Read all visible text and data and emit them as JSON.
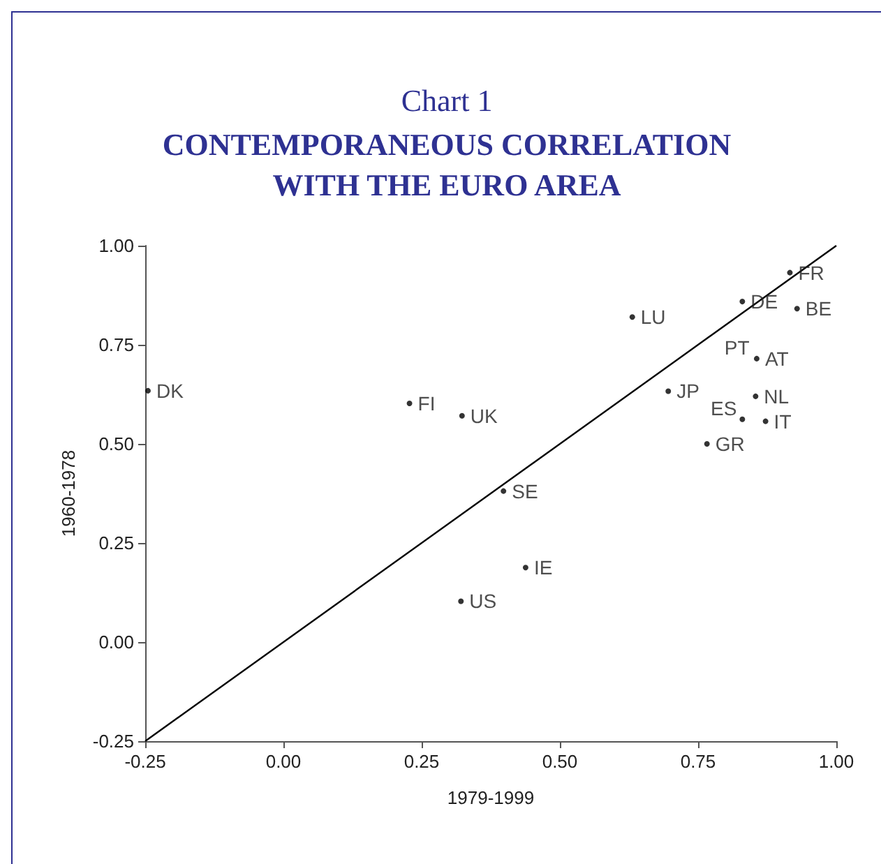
{
  "chart_data": {
    "type": "scatter",
    "title": "Chart 1",
    "subtitle": "CONTEMPORANEOUS CORRELATION\nWITH THE EURO AREA",
    "xlabel": "1979-1999",
    "ylabel": "1960-1978",
    "x": [
      -0.245,
      0.228,
      0.323,
      0.631,
      0.83,
      0.916,
      0.929,
      null,
      0.856,
      0.696,
      0.854,
      0.83,
      0.872,
      0.766,
      0.398,
      0.438,
      0.321
    ],
    "values": [
      0.634,
      0.602,
      0.571,
      0.82,
      0.859,
      0.932,
      0.841,
      null,
      0.715,
      0.633,
      0.62,
      0.562,
      0.557,
      0.5,
      0.381,
      0.188,
      0.103
    ],
    "color": "#000000",
    "marker": "circle",
    "annotations": [
      {
        "text": "DK",
        "x": -0.245,
        "y": 0.634
      },
      {
        "text": "FI",
        "x": 0.228,
        "y": 0.602
      },
      {
        "text": "UK",
        "x": 0.323,
        "y": 0.571
      },
      {
        "text": "LU",
        "x": 0.631,
        "y": 0.82
      },
      {
        "text": "DE",
        "x": 0.83,
        "y": 0.859
      },
      {
        "text": "FR",
        "x": 0.916,
        "y": 0.932
      },
      {
        "text": "BE",
        "x": 0.929,
        "y": 0.841
      },
      {
        "text": "PT",
        "x": 0.853,
        "y": 0.715
      },
      {
        "text": "AT",
        "x": 0.856,
        "y": 0.715
      },
      {
        "text": "JP",
        "x": 0.696,
        "y": 0.633
      },
      {
        "text": "NL",
        "x": 0.854,
        "y": 0.62
      },
      {
        "text": "ES",
        "x": 0.83,
        "y": 0.562
      },
      {
        "text": "IT",
        "x": 0.872,
        "y": 0.557
      },
      {
        "text": "GR",
        "x": 0.766,
        "y": 0.5
      },
      {
        "text": "SE",
        "x": 0.398,
        "y": 0.381
      },
      {
        "text": "IE",
        "x": 0.438,
        "y": 0.188
      },
      {
        "text": "US",
        "x": 0.321,
        "y": 0.103
      }
    ],
    "series": [
      {
        "type": "line",
        "color": "#000000",
        "x": [
          -0.25,
          1
        ],
        "values": [
          -0.25,
          1
        ],
        "marker": "none"
      }
    ],
    "xlim": [
      -0.25,
      1
    ],
    "xticks": [
      {
        "value": -0.25,
        "label": "-0.25"
      },
      {
        "value": 0,
        "label": "0.00"
      },
      {
        "value": 0.25,
        "label": "0.25"
      },
      {
        "value": 0.5,
        "label": "0.50"
      },
      {
        "value": 0.75,
        "label": "0.75"
      },
      {
        "value": 1,
        "label": "1.00"
      }
    ],
    "ylim": [
      -0.25,
      1
    ],
    "yticks": [
      {
        "value": -0.25,
        "label": "-0.25"
      },
      {
        "value": 0,
        "label": "0.00"
      },
      {
        "value": 0.25,
        "label": "0.25"
      },
      {
        "value": 0.5,
        "label": "0.50"
      },
      {
        "value": 0.75,
        "label": "0.75"
      },
      {
        "value": 1,
        "label": "1.00"
      }
    ],
    "grid": false
  }
}
